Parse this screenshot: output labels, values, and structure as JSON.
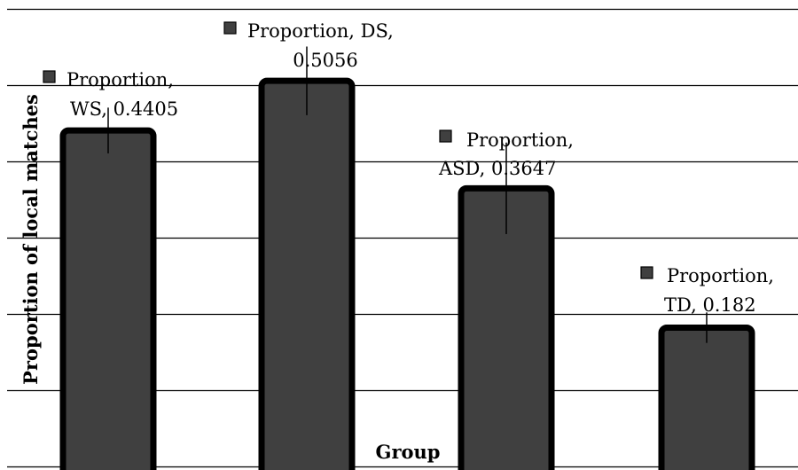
{
  "chart_data": {
    "type": "bar",
    "xlabel": "Group",
    "ylabel": "Proportion of local matches",
    "ylim": [
      0,
      0.6
    ],
    "grid": true,
    "categories": [
      "WS",
      "DS",
      "ASD",
      "TD"
    ],
    "series": [
      {
        "name": "Proportion",
        "values": [
          0.4405,
          0.5056,
          0.3647,
          0.182
        ]
      }
    ],
    "error_bars": [
      0.03,
      0.045,
      0.06,
      0.02
    ],
    "data_labels": [
      {
        "line1": "Proportion,",
        "line2": "WS, 0.4405"
      },
      {
        "line1": "Proportion, DS,",
        "line2": "0.5056"
      },
      {
        "line1": "Proportion,",
        "line2": "ASD, 0.3647"
      },
      {
        "line1": "Proportion,",
        "line2": "TD, 0.182"
      }
    ],
    "colors": {
      "bar_fill": "#404040",
      "bar_outline": "#000000",
      "grid": "#000000"
    }
  }
}
